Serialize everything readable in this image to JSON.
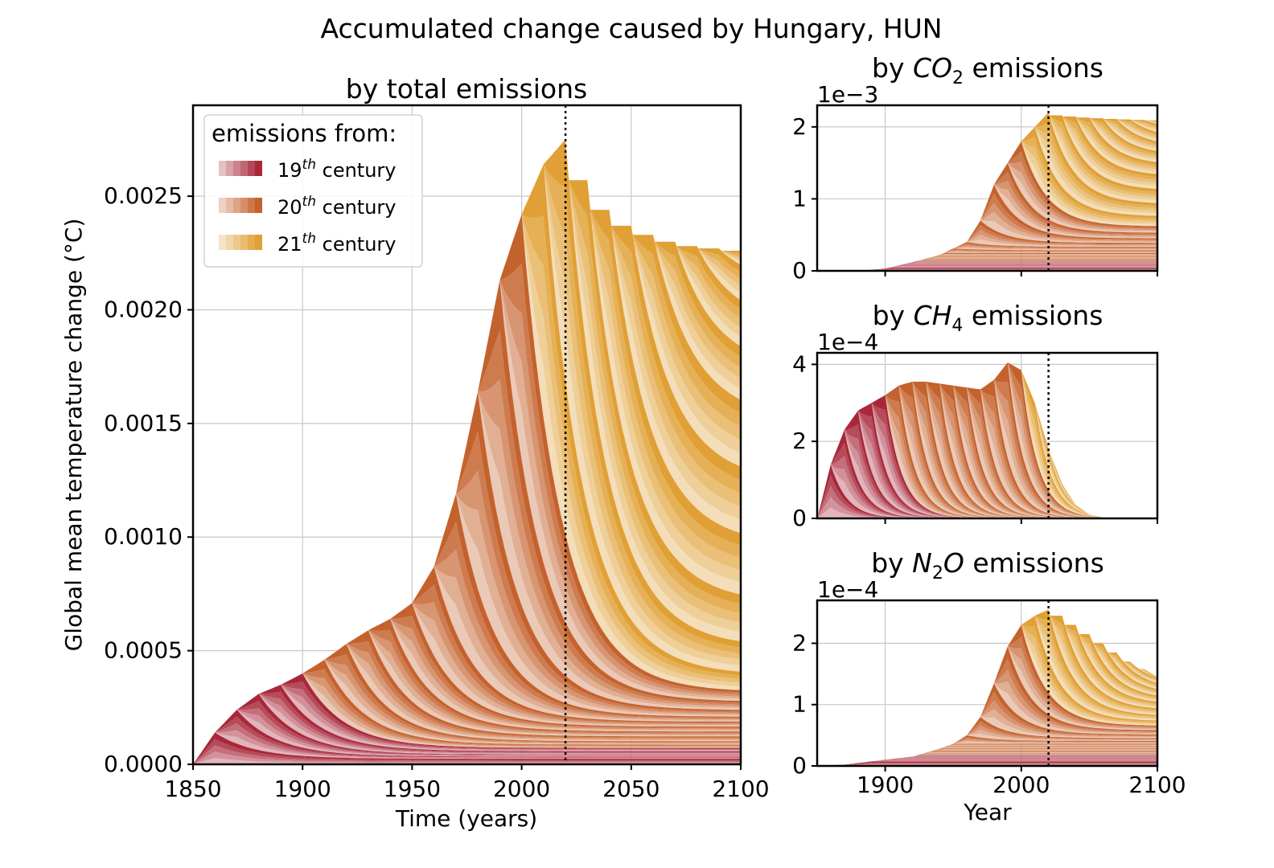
{
  "figure_title": "Accumulated change caused by Hungary, HUN",
  "colors": {
    "c19": "#a8283a",
    "c20": "#c4622d",
    "c21": "#e0a035",
    "grid": "#c8c8c8"
  },
  "legend": {
    "title": "emissions from:",
    "entries": [
      {
        "num": "19",
        "sup": "th",
        "text": " century"
      },
      {
        "num": "20",
        "sup": "th",
        "text": " century"
      },
      {
        "num": "21",
        "sup": "th",
        "text": " century"
      }
    ]
  },
  "chart_data": [
    {
      "type": "area",
      "stacked": true,
      "title": "by total emissions",
      "xlabel": "Time (years)",
      "ylabel": "Global mean temperature change (°C)",
      "xlim": [
        1850,
        2100
      ],
      "ylim": [
        0,
        0.0029
      ],
      "xticks": [
        1850,
        1900,
        1950,
        2000,
        2050,
        2100
      ],
      "yticks": [
        0.0,
        0.0005,
        0.001,
        0.0015,
        0.002,
        0.0025
      ],
      "ytick_labels": [
        "0.0000",
        "0.0005",
        "0.0010",
        "0.0015",
        "0.0020",
        "0.0025"
      ],
      "vline": 2020,
      "grid": true,
      "legend_position": "top-left",
      "envelope": {
        "x": [
          1850,
          1860,
          1870,
          1880,
          1890,
          1900,
          1910,
          1920,
          1930,
          1940,
          1950,
          1960,
          1970,
          1980,
          1990,
          2000,
          2010,
          2020,
          2030,
          2040,
          2050,
          2060,
          2070,
          2080,
          2090,
          2100
        ],
        "y": [
          0.0,
          0.00014,
          0.00024,
          0.00031,
          0.00035,
          0.0004,
          0.00046,
          0.00053,
          0.00059,
          0.00064,
          0.00071,
          0.00087,
          0.00119,
          0.00164,
          0.00213,
          0.00242,
          0.00264,
          0.00275,
          0.00257,
          0.00244,
          0.00237,
          0.00233,
          0.0023,
          0.00228,
          0.00227,
          0.00226
        ]
      },
      "plateaus_2100": [
        1e-05,
        3e-05,
        4e-05,
        6e-05,
        8e-05,
        0.0001,
        0.00013,
        0.00016,
        0.00019,
        0.00022,
        0.00027,
        0.00033,
        0.00045,
        0.00072,
        0.00108,
        0.00148,
        0.00178,
        0.00204,
        0.00226
      ]
    },
    {
      "type": "area",
      "stacked": true,
      "title_prefix": "by ",
      "title_species": "CO",
      "title_sub": "2",
      "title_suffix": " emissions",
      "offset_text": "1e−3",
      "scale": 0.001,
      "xlim": [
        1850,
        2100
      ],
      "ylim": [
        0,
        2.3
      ],
      "xticks": [
        1900,
        2000,
        2100
      ],
      "yticks": [
        0,
        1,
        2
      ],
      "vline": 2020,
      "envelope": {
        "x": [
          1850,
          1880,
          1900,
          1920,
          1940,
          1960,
          1970,
          1980,
          1990,
          2000,
          2010,
          2020,
          2030,
          2050,
          2070,
          2100
        ],
        "y": [
          0,
          0,
          0.03,
          0.12,
          0.22,
          0.4,
          0.7,
          1.2,
          1.5,
          1.8,
          2.0,
          2.2,
          2.16,
          2.13,
          2.11,
          2.09
        ]
      },
      "plateaus_2100": [
        0.03,
        0.06,
        0.1,
        0.15,
        0.2,
        0.27,
        0.36,
        0.48,
        0.65,
        0.98,
        1.36,
        1.63,
        1.85,
        2.09
      ]
    },
    {
      "type": "area",
      "stacked": true,
      "title_prefix": "by ",
      "title_species": "CH",
      "title_sub": "4",
      "title_suffix": " emissions",
      "offset_text": "1e−4",
      "scale": 0.0001,
      "xlim": [
        1850,
        2100
      ],
      "ylim": [
        0,
        4.3
      ],
      "xticks": [
        1900,
        2000,
        2100
      ],
      "yticks": [
        0,
        2,
        4
      ],
      "vline": 2020,
      "envelope": {
        "x": [
          1850,
          1860,
          1870,
          1880,
          1890,
          1900,
          1910,
          1920,
          1930,
          1940,
          1950,
          1960,
          1970,
          1980,
          1990,
          2000,
          2010,
          2020,
          2030,
          2040,
          2050,
          2060,
          2070,
          2100
        ],
        "y": [
          0,
          1.4,
          2.3,
          2.8,
          3.0,
          3.2,
          3.45,
          3.55,
          3.55,
          3.5,
          3.45,
          3.4,
          3.35,
          3.6,
          4.05,
          3.85,
          3.0,
          1.8,
          0.9,
          0.35,
          0.1,
          0.02,
          0,
          0
        ]
      }
    },
    {
      "type": "area",
      "stacked": true,
      "title_prefix": "by ",
      "title_species": "N",
      "title_sub": "2",
      "title_species2": "O",
      "title_suffix": " emissions",
      "offset_text": "1e−4",
      "xaxis_label": "Year",
      "scale": 0.0001,
      "xlim": [
        1850,
        2100
      ],
      "ylim": [
        0,
        2.7
      ],
      "xticks": [
        1900,
        2000,
        2100
      ],
      "yticks": [
        0,
        1,
        2
      ],
      "vline": 2020,
      "envelope": {
        "x": [
          1850,
          1870,
          1900,
          1920,
          1940,
          1950,
          1960,
          1970,
          1980,
          1990,
          2000,
          2010,
          2020,
          2030,
          2040,
          2050,
          2060,
          2070,
          2080,
          2090,
          2100
        ],
        "y": [
          0,
          0.02,
          0.1,
          0.15,
          0.28,
          0.36,
          0.5,
          0.8,
          1.35,
          1.95,
          2.3,
          2.45,
          2.55,
          2.45,
          2.3,
          2.15,
          2.0,
          1.85,
          1.7,
          1.58,
          1.45
        ]
      },
      "plateaus_2100": [
        0.05,
        0.1,
        0.16,
        0.22,
        0.3,
        0.38,
        0.48,
        0.62,
        0.78,
        0.98,
        1.15,
        1.3,
        1.45
      ]
    }
  ]
}
